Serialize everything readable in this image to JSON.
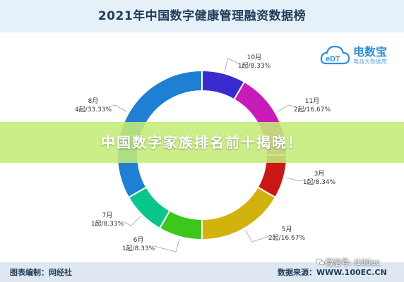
{
  "title": "2021年中国数字健康管理融资数据榜",
  "logo": {
    "text": "电数宝",
    "sub": "电商大数据库",
    "mark": "eDT"
  },
  "overlay_text": "中国数字家族排名前十揭晓！",
  "footer": {
    "left": "图表编制：网经社",
    "right": "数据来源：WWW.100EC.CN"
  },
  "watermark": "微信号: i100ec",
  "colors": {
    "oct": "#3a2bd0",
    "nov": "#c81bb8",
    "mar": "#cc1717",
    "may": "#d2b20d",
    "jun": "#3dc61c",
    "jul": "#0bc68a",
    "aug": "#1f7fd2"
  },
  "chart_data": {
    "type": "pie",
    "title": "2021年中国数字健康管理融资数据榜",
    "slices": [
      {
        "month": "10月",
        "label": "1起/8.33%",
        "count": 1,
        "percent": 8.33,
        "color": "#3a2bd0"
      },
      {
        "month": "11月",
        "label": "2起/16.67%",
        "count": 2,
        "percent": 16.67,
        "color": "#c81bb8"
      },
      {
        "month": "3月",
        "label": "1起/8.34%",
        "count": 1,
        "percent": 8.34,
        "color": "#cc1717"
      },
      {
        "month": "5月",
        "label": "2起/16.67%",
        "count": 2,
        "percent": 16.67,
        "color": "#d2b20d"
      },
      {
        "month": "6月",
        "label": "1起/8.33%",
        "count": 1,
        "percent": 8.33,
        "color": "#3dc61c"
      },
      {
        "month": "7月",
        "label": "1起/8.33%",
        "count": 1,
        "percent": 8.33,
        "color": "#0bc68a"
      },
      {
        "month": "8月",
        "label": "4起/33.33%",
        "count": 4,
        "percent": 33.33,
        "color": "#1f7fd2"
      }
    ]
  }
}
